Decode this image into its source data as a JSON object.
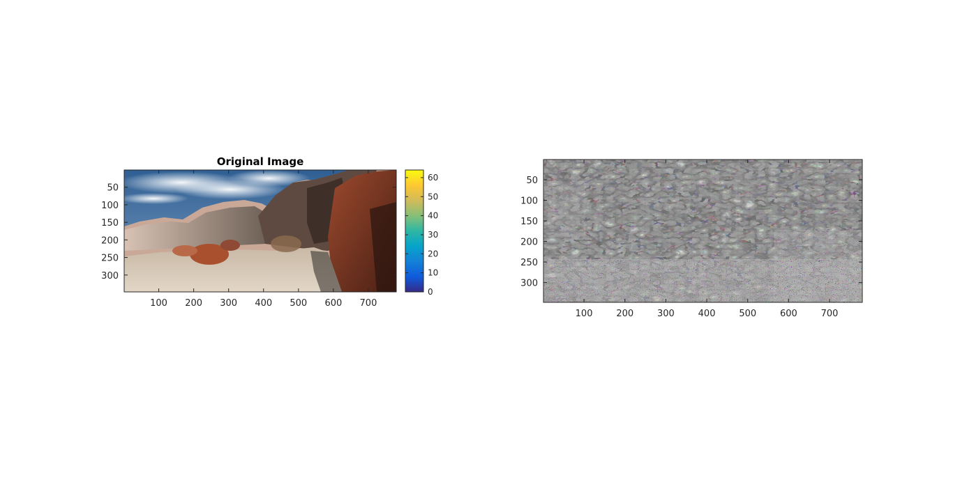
{
  "chart_data": [
    {
      "type": "image",
      "title": "Original Image",
      "xlim": [
        1,
        780
      ],
      "ylim": [
        1,
        348
      ],
      "y_reversed": true,
      "xticks": [
        100,
        200,
        300,
        400,
        500,
        600,
        700
      ],
      "yticks": [
        50,
        100,
        150,
        200,
        250,
        300
      ],
      "content": "desert canyon photograph with red rocks and blue sky",
      "colorbar": {
        "colormap": "parula",
        "range": [
          0,
          64
        ],
        "ticks": [
          0,
          10,
          20,
          30,
          40,
          50,
          60
        ],
        "colors": [
          "#352a87",
          "#0f5cdd",
          "#1481d6",
          "#06a4ca",
          "#2eb7a4",
          "#87bf77",
          "#d1bb59",
          "#fec832",
          "#f9fb0e"
        ]
      }
    },
    {
      "type": "image",
      "title": "",
      "xlim": [
        1,
        780
      ],
      "ylim": [
        1,
        348
      ],
      "y_reversed": true,
      "xticks": [
        100,
        200,
        300,
        400,
        500,
        600,
        700
      ],
      "yticks": [
        50,
        100,
        150,
        200,
        250,
        300
      ],
      "content": "high-pass filtered (edge) version of the photograph"
    }
  ]
}
